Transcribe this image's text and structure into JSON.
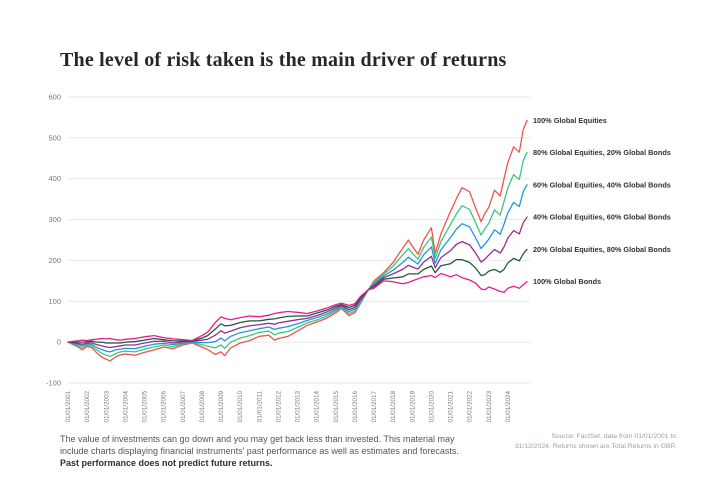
{
  "header": {
    "title": "The level of risk taken is the main driver of returns"
  },
  "chart_data": {
    "type": "line",
    "title": "The level of risk taken is the main driver of returns",
    "xlabel": "",
    "ylabel": "",
    "grid": "horizontal",
    "legend_position": "right-of-line-ends",
    "y_ticks": [
      600,
      500,
      400,
      300,
      200,
      100,
      0,
      -100
    ],
    "ylim": [
      -100,
      600
    ],
    "xlim": [
      2001.0,
      2025.0
    ],
    "x_tick_labels": [
      "01/01/2001",
      "01/01/2002",
      "01/01/2003",
      "01/01/2004",
      "01/01/2005",
      "01/01/2006",
      "01/01/2007",
      "01/01/2008",
      "01/01/2009",
      "01/01/2010",
      "01/01/2011",
      "01/01/2012",
      "01/01/2013",
      "01/01/2014",
      "01/01/2015",
      "01/01/2016",
      "01/01/2017",
      "01/01/2018",
      "01/01/2019",
      "01/01/2020",
      "01/01/2021",
      "01/01/2022",
      "01/01/2023",
      "01/01/2024"
    ],
    "x_tick_start_year": 2001,
    "x": [
      2001.0,
      2001.25,
      2001.5,
      2001.75,
      2002.0,
      2002.25,
      2002.5,
      2002.75,
      2003.0,
      2003.2,
      2003.5,
      2003.75,
      2004.0,
      2004.5,
      2005.0,
      2005.5,
      2006.0,
      2006.5,
      2007.0,
      2007.5,
      2008.0,
      2008.3,
      2008.7,
      2009.0,
      2009.2,
      2009.5,
      2010.0,
      2010.5,
      2011.0,
      2011.5,
      2011.8,
      2012.0,
      2012.5,
      2013.0,
      2013.5,
      2014.0,
      2014.5,
      2015.0,
      2015.3,
      2015.7,
      2016.0,
      2016.3,
      2016.7,
      2017.0,
      2017.5,
      2018.0,
      2018.5,
      2018.8,
      2019.0,
      2019.3,
      2019.6,
      2020.0,
      2020.2,
      2020.5,
      2021.0,
      2021.3,
      2021.6,
      2022.0,
      2022.3,
      2022.6,
      2022.8,
      2023.0,
      2023.3,
      2023.6,
      2023.8,
      2024.0,
      2024.3,
      2024.6,
      2024.8,
      2025.0
    ],
    "series": [
      {
        "name": "100% Global Equities",
        "color": "#ed544a",
        "values": [
          0,
          -6,
          -11,
          -19,
          -10,
          -14,
          -26,
          -36,
          -42,
          -46,
          -36,
          -31,
          -29,
          -32,
          -25,
          -19,
          -12,
          -16,
          -7,
          -2,
          -12,
          -18,
          -30,
          -24,
          -33,
          -14,
          -2,
          4,
          14,
          17,
          5,
          9,
          14,
          27,
          41,
          49,
          58,
          72,
          82,
          65,
          72,
          95,
          128,
          150,
          170,
          195,
          230,
          250,
          235,
          215,
          250,
          280,
          217,
          265,
          320,
          350,
          378,
          368,
          330,
          295,
          315,
          330,
          372,
          358,
          400,
          440,
          478,
          465,
          520,
          543
        ]
      },
      {
        "name": "80% Global Equities, 20% Global Bonds",
        "color": "#3ec67d",
        "values": [
          0,
          -4,
          -8,
          -14,
          -7,
          -10,
          -19,
          -27,
          -32,
          -35,
          -28,
          -24,
          -22,
          -24,
          -17,
          -12,
          -7,
          -11,
          -4,
          -1,
          -6,
          -10,
          -14,
          -7,
          -15,
          0,
          10,
          16,
          24,
          27,
          18,
          22,
          26,
          36,
          47,
          54,
          63,
          76,
          85,
          70,
          76,
          98,
          128,
          146,
          166,
          186,
          213,
          229,
          218,
          203,
          232,
          257,
          205,
          246,
          288,
          313,
          334,
          325,
          293,
          262,
          278,
          291,
          324,
          311,
          344,
          378,
          410,
          398,
          444,
          464
        ]
      },
      {
        "name": "60% Global Equities, 40% Global Bonds",
        "color": "#2097dd",
        "values": [
          0,
          -3,
          -5,
          -9,
          -4,
          -6,
          -13,
          -18,
          -22,
          -24,
          -19,
          -17,
          -15,
          -16,
          -10,
          -5,
          -3,
          -6,
          -2,
          0,
          -1,
          -1,
          1,
          10,
          3,
          14,
          23,
          28,
          33,
          37,
          31,
          34,
          38,
          45,
          53,
          60,
          68,
          80,
          87,
          75,
          81,
          102,
          128,
          143,
          162,
          176,
          195,
          208,
          201,
          191,
          214,
          233,
          193,
          226,
          256,
          276,
          290,
          282,
          256,
          229,
          240,
          252,
          275,
          264,
          289,
          317,
          342,
          332,
          368,
          385
        ]
      },
      {
        "name": "40% Global Equities, 60% Global Bonds",
        "color": "#982f90",
        "values": [
          0,
          -1,
          -3,
          -5,
          -2,
          -2,
          -6,
          -9,
          -12,
          -13,
          -11,
          -9,
          -7,
          -7,
          -2,
          2,
          2,
          -2,
          1,
          2,
          5,
          7,
          17,
          28,
          22,
          27,
          35,
          40,
          43,
          46,
          44,
          47,
          51,
          55,
          58,
          65,
          73,
          84,
          90,
          80,
          85,
          105,
          128,
          139,
          158,
          167,
          178,
          188,
          184,
          179,
          196,
          210,
          182,
          207,
          224,
          239,
          246,
          238,
          219,
          196,
          203,
          213,
          227,
          218,
          233,
          255,
          273,
          265,
          292,
          306
        ]
      },
      {
        "name": "20% Global Equities, 80% Global Bonds",
        "color": "#1e5b3c",
        "values": [
          0,
          0,
          0,
          0,
          1,
          2,
          0,
          0,
          -2,
          -2,
          -2,
          -2,
          0,
          1,
          5,
          9,
          6,
          3,
          3,
          3,
          10,
          16,
          32,
          45,
          40,
          41,
          48,
          52,
          52,
          56,
          57,
          59,
          63,
          64,
          64,
          71,
          78,
          88,
          92,
          85,
          90,
          109,
          128,
          136,
          154,
          157,
          160,
          167,
          167,
          167,
          178,
          186,
          170,
          187,
          192,
          202,
          202,
          195,
          182,
          163,
          165,
          174,
          178,
          171,
          178,
          194,
          205,
          199,
          216,
          227
        ]
      },
      {
        "name": "100% Global Bonds",
        "color": "#ec1a8c",
        "values": [
          0,
          2,
          3,
          5,
          4,
          6,
          7,
          9,
          8,
          9,
          6,
          5,
          7,
          9,
          13,
          16,
          11,
          8,
          6,
          4,
          16,
          24,
          48,
          62,
          58,
          55,
          60,
          64,
          62,
          66,
          70,
          72,
          75,
          73,
          70,
          76,
          83,
          92,
          95,
          90,
          94,
          112,
          128,
          132,
          150,
          148,
          143,
          146,
          150,
          155,
          160,
          163,
          158,
          168,
          160,
          165,
          158,
          152,
          145,
          130,
          128,
          135,
          130,
          124,
          122,
          132,
          137,
          132,
          140,
          148
        ]
      }
    ],
    "style": {
      "grid_color": "#e7e7e9",
      "tick_label_color": "#77787d",
      "legend_label_color": "#2f3036"
    }
  },
  "footer": {
    "line1": "The value of investments can go down and you may get back less than invested. This material may",
    "line2": "include charts displaying financial instruments' past performance as well as estimates and forecasts.",
    "bold_line": "Past performance does not predict future returns."
  },
  "source": {
    "line1": "Source: FactSet, data from 01/01/2001 to",
    "line2": "31/12/2024. Returns shown are Total Returns in GBP."
  }
}
